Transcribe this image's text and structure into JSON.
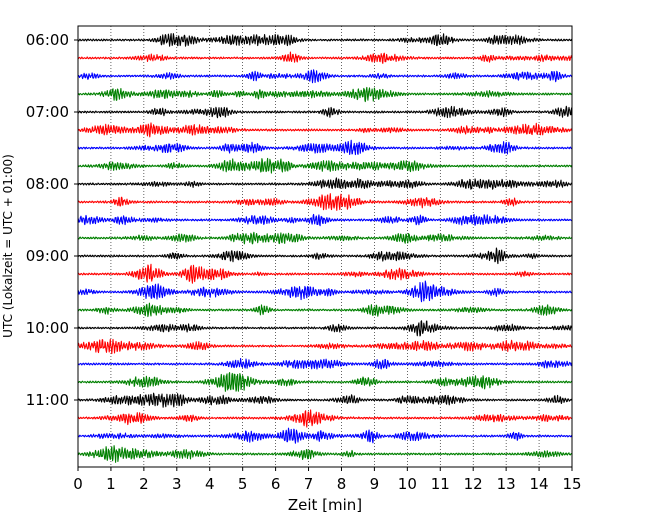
{
  "chart_data": {
    "type": "line",
    "title": "",
    "xlabel": "Zeit  [min]",
    "ylabel": "UTC (Lokalzeit = UTC + 01:00)",
    "xlim": [
      0,
      15
    ],
    "x_ticks": [
      "0",
      "1",
      "2",
      "3",
      "4",
      "5",
      "6",
      "7",
      "8",
      "9",
      "10",
      "11",
      "12",
      "13",
      "14",
      "15"
    ],
    "y_tick_labels": [
      "06:00",
      "07:00",
      "08:00",
      "09:00",
      "10:00",
      "11:00"
    ],
    "first_trace_utc": "06:00",
    "trace_interval_min": 15,
    "trace_count": 24,
    "trace_colors": [
      "#000000",
      "#ff0000",
      "#0000ff",
      "#008000"
    ],
    "vertical_grid": true,
    "grid_style": "dotted"
  }
}
